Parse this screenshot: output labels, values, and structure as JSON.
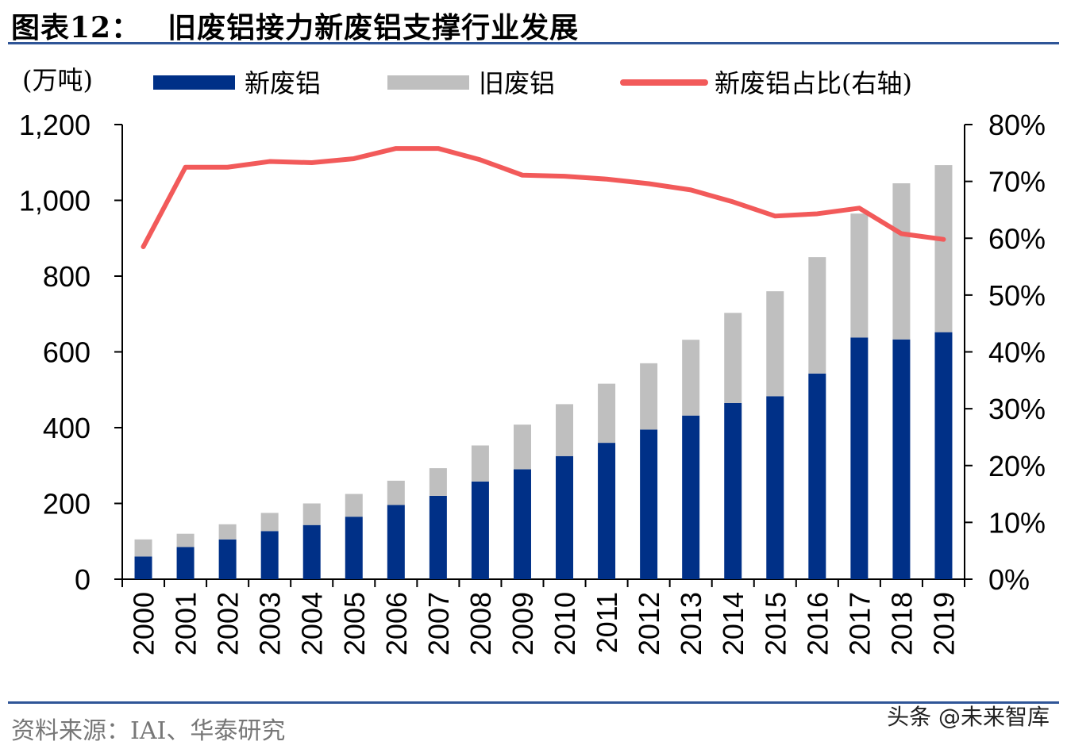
{
  "header": {
    "figure_label": "图表12：",
    "title": "旧废铝接力新废铝支撑行业发展"
  },
  "footer": {
    "source": "资料来源：IAI、华泰研究",
    "watermark": "头条 @未来智库"
  },
  "colors": {
    "rule": "#2f5597",
    "new_scrap": "#003087",
    "old_scrap": "#bfbfbf",
    "share_line": "#f25a5a"
  },
  "chart_data": {
    "type": "bar",
    "stacked": true,
    "title": "旧废铝接力新废铝支撑行业发展",
    "ylabel": "(万吨)",
    "ylim": [
      0,
      1200
    ],
    "yticks": [
      0,
      200,
      400,
      600,
      800,
      1000,
      1200
    ],
    "ytick_labels": [
      "0",
      "200",
      "400",
      "600",
      "800",
      "1,000",
      "1,200"
    ],
    "y2lim": [
      0,
      80
    ],
    "y2ticks": [
      0,
      10,
      20,
      30,
      40,
      50,
      60,
      70,
      80
    ],
    "y2tick_labels": [
      "0%",
      "10%",
      "20%",
      "30%",
      "40%",
      "50%",
      "60%",
      "70%",
      "80%"
    ],
    "categories": [
      "2000",
      "2001",
      "2002",
      "2003",
      "2004",
      "2005",
      "2006",
      "2007",
      "2008",
      "2009",
      "2010",
      "2011",
      "2012",
      "2013",
      "2014",
      "2015",
      "2016",
      "2017",
      "2018",
      "2019"
    ],
    "series": [
      {
        "name": "新废铝",
        "type": "bar",
        "axis": "left",
        "values": [
          60,
          85,
          105,
          127,
          143,
          165,
          196,
          220,
          258,
          290,
          325,
          360,
          395,
          432,
          465,
          483,
          543,
          638,
          633,
          652
        ]
      },
      {
        "name": "旧废铝",
        "type": "bar",
        "axis": "left",
        "values": [
          45,
          35,
          40,
          48,
          57,
          60,
          64,
          73,
          95,
          118,
          137,
          156,
          175,
          200,
          238,
          277,
          307,
          327,
          412,
          441
        ]
      },
      {
        "name": "新废铝占比(右轴)",
        "type": "line",
        "axis": "right",
        "values": [
          58.5,
          72.5,
          72.5,
          73.5,
          73.3,
          74.0,
          75.8,
          75.8,
          73.8,
          71.1,
          70.9,
          70.4,
          69.6,
          68.5,
          66.4,
          63.9,
          64.3,
          65.3,
          60.8,
          59.8
        ]
      }
    ],
    "legend_position": "top"
  }
}
